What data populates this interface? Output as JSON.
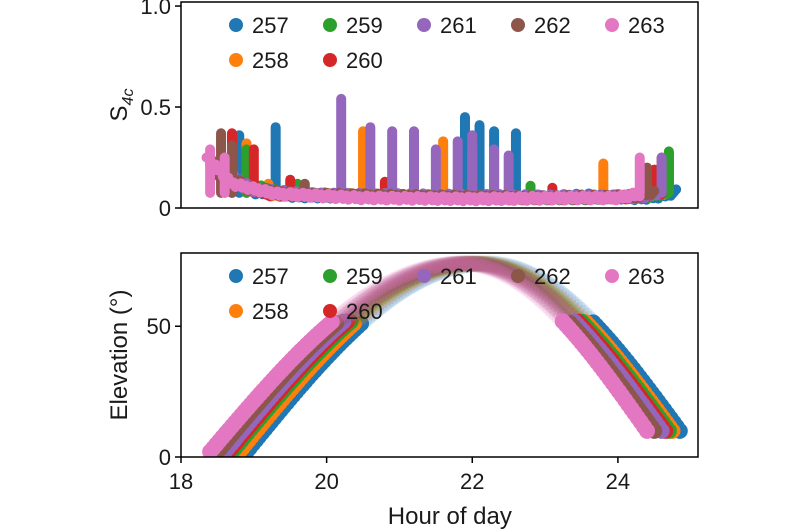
{
  "chart_data": [
    {
      "type": "scatter",
      "panel": "top",
      "ylabel": "S4c",
      "xlim": [
        18,
        25.1
      ],
      "ylim": [
        0,
        1.02
      ],
      "yticks": [
        0,
        0.5,
        1.0
      ],
      "yticklabels": [
        "0",
        "0.5",
        "1.0"
      ],
      "grid": false,
      "legend_position": "top",
      "series": [
        {
          "name": "257",
          "color": "#1f77b4",
          "baseline": [
            [
              18.7,
              0.18
            ],
            [
              19.0,
              0.08
            ],
            [
              19.6,
              0.06
            ],
            [
              21.0,
              0.055
            ],
            [
              22.5,
              0.05
            ],
            [
              23.6,
              0.06
            ],
            [
              24.3,
              0.05
            ],
            [
              24.6,
              0.06
            ],
            [
              24.8,
              0.08
            ]
          ],
          "spikes": [
            [
              18.8,
              0.37
            ],
            [
              19.3,
              0.41
            ],
            [
              21.9,
              0.46
            ],
            [
              22.1,
              0.42
            ],
            [
              22.3,
              0.39
            ],
            [
              22.6,
              0.38
            ],
            [
              24.7,
              0.28
            ]
          ]
        },
        {
          "name": "258",
          "color": "#ff7f0e",
          "baseline": [
            [
              18.6,
              0.16
            ],
            [
              19.2,
              0.07
            ],
            [
              20.2,
              0.06
            ],
            [
              21.5,
              0.055
            ],
            [
              23.2,
              0.05
            ],
            [
              24.3,
              0.06
            ],
            [
              24.7,
              0.08
            ]
          ],
          "spikes": [
            [
              18.9,
              0.33
            ],
            [
              19.2,
              0.13
            ],
            [
              20.5,
              0.39
            ],
            [
              21.2,
              0.35
            ],
            [
              21.6,
              0.34
            ],
            [
              23.8,
              0.23
            ],
            [
              24.6,
              0.26
            ]
          ]
        },
        {
          "name": "259",
          "color": "#2ca02c",
          "baseline": [
            [
              18.6,
              0.15
            ],
            [
              19.4,
              0.07
            ],
            [
              21.5,
              0.05
            ],
            [
              23.5,
              0.05
            ],
            [
              24.4,
              0.06
            ],
            [
              24.7,
              0.08
            ]
          ],
          "spikes": [
            [
              18.9,
              0.3
            ],
            [
              19.6,
              0.13
            ],
            [
              22.8,
              0.12
            ],
            [
              24.7,
              0.29
            ]
          ]
        },
        {
          "name": "260",
          "color": "#d62728",
          "baseline": [
            [
              18.5,
              0.17
            ],
            [
              19.2,
              0.07
            ],
            [
              20.5,
              0.06
            ],
            [
              22.5,
              0.05
            ],
            [
              24.2,
              0.055
            ],
            [
              24.6,
              0.08
            ]
          ],
          "spikes": [
            [
              18.7,
              0.38
            ],
            [
              19.0,
              0.3
            ],
            [
              19.5,
              0.15
            ],
            [
              20.8,
              0.14
            ],
            [
              23.1,
              0.11
            ],
            [
              24.5,
              0.2
            ]
          ]
        },
        {
          "name": "261",
          "color": "#9467bd",
          "baseline": [
            [
              18.5,
              0.2
            ],
            [
              19.0,
              0.09
            ],
            [
              19.8,
              0.065
            ],
            [
              21.5,
              0.06
            ],
            [
              23.0,
              0.055
            ],
            [
              24.3,
              0.055
            ],
            [
              24.6,
              0.08
            ]
          ],
          "spikes": [
            [
              18.6,
              0.26
            ],
            [
              20.2,
              0.55
            ],
            [
              20.6,
              0.41
            ],
            [
              20.9,
              0.39
            ],
            [
              21.2,
              0.39
            ],
            [
              21.5,
              0.3
            ],
            [
              21.8,
              0.34
            ],
            [
              22.0,
              0.37
            ],
            [
              22.3,
              0.3
            ],
            [
              22.5,
              0.27
            ],
            [
              22.0,
              0.3
            ],
            [
              24.6,
              0.26
            ]
          ]
        },
        {
          "name": "262",
          "color": "#8c564b",
          "baseline": [
            [
              18.45,
              0.22
            ],
            [
              18.9,
              0.1
            ],
            [
              19.6,
              0.065
            ],
            [
              21.5,
              0.055
            ],
            [
              23.2,
              0.05
            ],
            [
              24.2,
              0.055
            ],
            [
              24.5,
              0.08
            ]
          ],
          "spikes": [
            [
              18.55,
              0.38
            ],
            [
              18.7,
              0.32
            ],
            [
              19.7,
              0.13
            ],
            [
              24.4,
              0.21
            ]
          ]
        },
        {
          "name": "263",
          "color": "#e377c2",
          "baseline": [
            [
              18.35,
              0.25
            ],
            [
              18.7,
              0.12
            ],
            [
              19.3,
              0.07
            ],
            [
              20.5,
              0.05
            ],
            [
              22.0,
              0.045
            ],
            [
              23.5,
              0.05
            ],
            [
              24.0,
              0.05
            ],
            [
              24.3,
              0.07
            ]
          ],
          "spikes": [
            [
              18.4,
              0.3
            ],
            [
              18.6,
              0.26
            ],
            [
              24.3,
              0.26
            ]
          ]
        }
      ]
    },
    {
      "type": "scatter",
      "panel": "bottom",
      "xlabel": "Hour of day",
      "ylabel": "Elevation (°)",
      "xlim": [
        18,
        25.1
      ],
      "ylim": [
        0,
        78
      ],
      "xticks": [
        18,
        20,
        22,
        24
      ],
      "xticklabels": [
        "18",
        "20",
        "22",
        "24"
      ],
      "yticks": [
        0,
        50
      ],
      "yticklabels": [
        "0",
        "50"
      ],
      "grid": false,
      "legend_position": "top",
      "series": [
        {
          "name": "257",
          "color": "#1f77b4",
          "x": [
            18.9,
            22.2,
            24.85
          ],
          "y": [
            2,
            74,
            10
          ]
        },
        {
          "name": "258",
          "color": "#ff7f0e",
          "x": [
            18.8,
            22.1,
            24.75
          ],
          "y": [
            2,
            74,
            10
          ]
        },
        {
          "name": "259",
          "color": "#2ca02c",
          "x": [
            18.7,
            22.05,
            24.7
          ],
          "y": [
            2,
            74,
            10
          ]
        },
        {
          "name": "260",
          "color": "#d62728",
          "x": [
            18.65,
            22.0,
            24.65
          ],
          "y": [
            2,
            74,
            10
          ]
        },
        {
          "name": "261",
          "color": "#9467bd",
          "x": [
            18.6,
            21.95,
            24.6
          ],
          "y": [
            2,
            74,
            10
          ]
        },
        {
          "name": "262",
          "color": "#8c564b",
          "x": [
            18.5,
            21.9,
            24.5
          ],
          "y": [
            2,
            74,
            10
          ]
        },
        {
          "name": "263",
          "color": "#e377c2",
          "x": [
            18.4,
            21.85,
            24.4
          ],
          "y": [
            2,
            74,
            10
          ]
        }
      ]
    }
  ]
}
